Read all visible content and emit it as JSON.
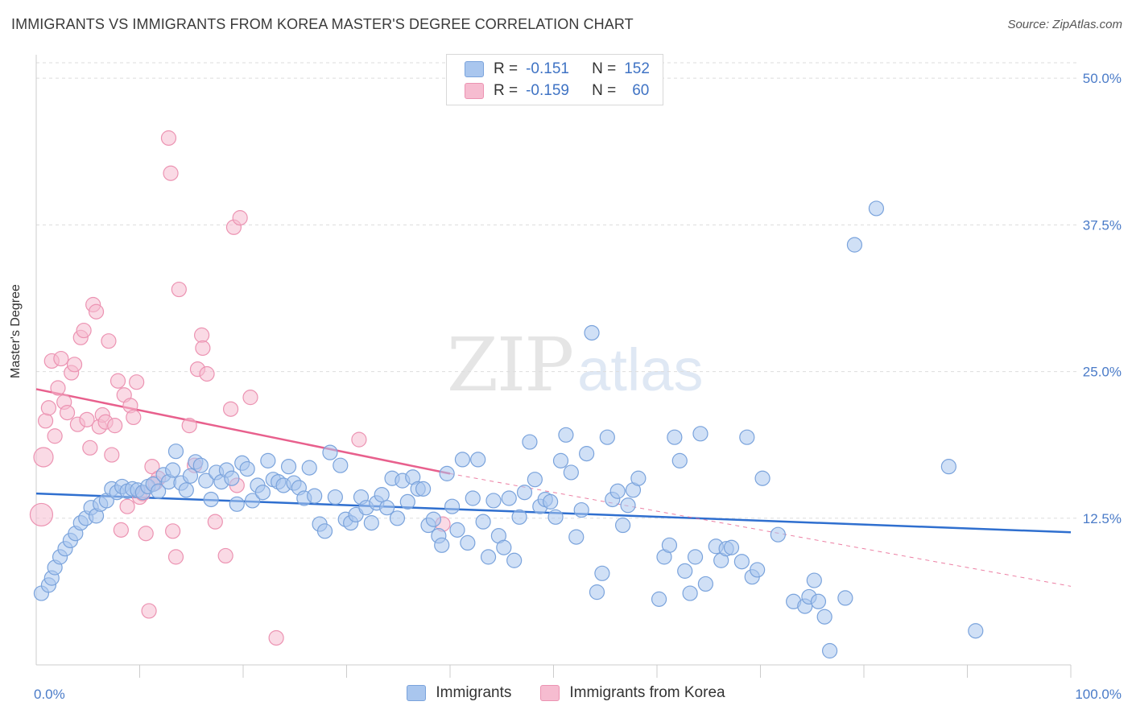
{
  "title": "IMMIGRANTS VS IMMIGRANTS FROM KOREA MASTER'S DEGREE CORRELATION CHART",
  "source": "Source: ZipAtlas.com",
  "watermark": {
    "zip": "ZIP",
    "atlas": "atlas"
  },
  "legend": {
    "row1": {
      "r_label": "R =",
      "r_value": "-0.151",
      "n_label": "N =",
      "n_value": "152"
    },
    "row2": {
      "r_label": "R =",
      "r_value": "-0.159",
      "n_label": "N =",
      "n_value": "60"
    }
  },
  "bottom_legend": {
    "series1": "Immigrants",
    "series2": "Immigrants from Korea"
  },
  "colors": {
    "blue_fill": "#a9c6ee",
    "blue_stroke": "#7aa3dc",
    "blue_line": "#2f6fcf",
    "pink_fill": "#f6bcd0",
    "pink_stroke": "#ec93b2",
    "pink_line": "#e8608d",
    "tick_text": "#4a7bc8",
    "grid": "#dddddd"
  },
  "chart_data": {
    "type": "scatter",
    "title": "IMMIGRANTS VS IMMIGRANTS FROM KOREA MASTER'S DEGREE CORRELATION CHART",
    "xlabel": "",
    "ylabel": "Master's Degree",
    "xlim": [
      0,
      100
    ],
    "ylim": [
      0,
      52
    ],
    "x_tick_labels": [
      "0.0%",
      "100.0%"
    ],
    "y_ticks": [
      12.5,
      25.0,
      37.5,
      50.0
    ],
    "y_tick_labels": [
      "12.5%",
      "25.0%",
      "37.5%",
      "50.0%"
    ],
    "grid": true,
    "legend_position": "top-center",
    "series": [
      {
        "name": "Immigrants",
        "r": -0.151,
        "n": 152,
        "trend": {
          "x": [
            0,
            100
          ],
          "y": [
            14.6,
            11.3
          ],
          "style": "solid"
        },
        "points": [
          [
            0.5,
            6.1
          ],
          [
            1.2,
            6.8
          ],
          [
            1.5,
            7.4
          ],
          [
            1.8,
            8.3
          ],
          [
            2.3,
            9.2
          ],
          [
            2.8,
            9.9
          ],
          [
            3.3,
            10.6
          ],
          [
            3.8,
            11.2
          ],
          [
            4.3,
            12.1
          ],
          [
            4.8,
            12.5
          ],
          [
            5.3,
            13.4
          ],
          [
            5.8,
            12.7
          ],
          [
            6.2,
            13.7
          ],
          [
            6.8,
            14.0
          ],
          [
            7.3,
            15.0
          ],
          [
            7.8,
            14.7
          ],
          [
            8.3,
            15.2
          ],
          [
            8.8,
            14.8
          ],
          [
            9.3,
            15.0
          ],
          [
            9.8,
            14.9
          ],
          [
            10.3,
            14.7
          ],
          [
            10.8,
            15.2
          ],
          [
            11.3,
            15.4
          ],
          [
            11.8,
            14.8
          ],
          [
            12.3,
            16.2
          ],
          [
            12.8,
            15.6
          ],
          [
            13.2,
            16.6
          ],
          [
            13.5,
            18.2
          ],
          [
            14.0,
            15.5
          ],
          [
            14.5,
            14.9
          ],
          [
            14.9,
            16.1
          ],
          [
            15.4,
            17.3
          ],
          [
            15.9,
            17.0
          ],
          [
            16.4,
            15.7
          ],
          [
            16.9,
            14.1
          ],
          [
            17.4,
            16.4
          ],
          [
            17.9,
            15.6
          ],
          [
            18.4,
            16.6
          ],
          [
            18.9,
            15.9
          ],
          [
            19.4,
            13.7
          ],
          [
            19.9,
            17.2
          ],
          [
            20.4,
            16.7
          ],
          [
            20.9,
            14.0
          ],
          [
            21.4,
            15.3
          ],
          [
            21.9,
            14.7
          ],
          [
            22.4,
            17.4
          ],
          [
            22.9,
            15.8
          ],
          [
            23.4,
            15.6
          ],
          [
            23.9,
            15.3
          ],
          [
            24.4,
            16.9
          ],
          [
            24.9,
            15.5
          ],
          [
            25.4,
            15.1
          ],
          [
            25.9,
            14.2
          ],
          [
            26.4,
            16.8
          ],
          [
            26.9,
            14.4
          ],
          [
            27.4,
            12.0
          ],
          [
            27.9,
            11.4
          ],
          [
            28.4,
            18.1
          ],
          [
            28.9,
            14.3
          ],
          [
            29.4,
            17.0
          ],
          [
            29.9,
            12.4
          ],
          [
            30.4,
            12.1
          ],
          [
            30.9,
            12.8
          ],
          [
            31.4,
            14.3
          ],
          [
            31.9,
            13.4
          ],
          [
            32.4,
            12.1
          ],
          [
            32.9,
            13.8
          ],
          [
            33.4,
            14.5
          ],
          [
            33.9,
            13.4
          ],
          [
            34.4,
            15.9
          ],
          [
            34.9,
            12.5
          ],
          [
            35.4,
            15.7
          ],
          [
            35.9,
            13.9
          ],
          [
            36.4,
            16.0
          ],
          [
            36.9,
            15.0
          ],
          [
            37.4,
            15.0
          ],
          [
            37.9,
            11.9
          ],
          [
            38.4,
            12.4
          ],
          [
            38.9,
            11.0
          ],
          [
            39.2,
            10.2
          ],
          [
            39.7,
            16.3
          ],
          [
            40.2,
            13.5
          ],
          [
            40.7,
            11.5
          ],
          [
            41.2,
            17.5
          ],
          [
            41.7,
            10.4
          ],
          [
            42.2,
            14.2
          ],
          [
            42.7,
            17.5
          ],
          [
            43.2,
            12.2
          ],
          [
            43.7,
            9.2
          ],
          [
            44.2,
            14.0
          ],
          [
            44.7,
            11.0
          ],
          [
            45.2,
            10.0
          ],
          [
            45.7,
            14.2
          ],
          [
            46.2,
            8.9
          ],
          [
            46.7,
            12.6
          ],
          [
            47.2,
            14.7
          ],
          [
            47.7,
            19.0
          ],
          [
            48.2,
            15.8
          ],
          [
            48.7,
            13.5
          ],
          [
            49.2,
            14.1
          ],
          [
            49.7,
            13.9
          ],
          [
            50.2,
            12.6
          ],
          [
            50.7,
            17.4
          ],
          [
            51.2,
            19.6
          ],
          [
            51.7,
            16.4
          ],
          [
            52.2,
            10.9
          ],
          [
            52.7,
            13.2
          ],
          [
            53.2,
            18.0
          ],
          [
            53.7,
            28.3
          ],
          [
            54.2,
            6.2
          ],
          [
            54.7,
            7.8
          ],
          [
            55.2,
            19.4
          ],
          [
            55.7,
            14.1
          ],
          [
            56.2,
            14.8
          ],
          [
            56.7,
            11.9
          ],
          [
            57.2,
            13.6
          ],
          [
            57.7,
            14.9
          ],
          [
            58.2,
            15.9
          ],
          [
            60.2,
            5.6
          ],
          [
            60.7,
            9.2
          ],
          [
            61.2,
            10.2
          ],
          [
            61.7,
            19.4
          ],
          [
            62.2,
            17.4
          ],
          [
            62.7,
            8.0
          ],
          [
            63.2,
            6.1
          ],
          [
            63.7,
            9.2
          ],
          [
            64.2,
            19.7
          ],
          [
            64.7,
            6.9
          ],
          [
            65.7,
            10.1
          ],
          [
            66.2,
            8.9
          ],
          [
            66.7,
            9.9
          ],
          [
            67.2,
            10.0
          ],
          [
            68.2,
            8.8
          ],
          [
            68.7,
            19.4
          ],
          [
            69.2,
            7.5
          ],
          [
            69.7,
            8.1
          ],
          [
            70.2,
            15.9
          ],
          [
            71.7,
            11.1
          ],
          [
            73.2,
            5.4
          ],
          [
            74.3,
            5.0
          ],
          [
            74.7,
            5.8
          ],
          [
            75.2,
            7.2
          ],
          [
            75.6,
            5.4
          ],
          [
            76.2,
            4.1
          ],
          [
            76.7,
            1.2
          ],
          [
            78.2,
            5.7
          ],
          [
            79.1,
            35.8
          ],
          [
            81.2,
            38.9
          ],
          [
            88.2,
            16.9
          ],
          [
            90.8,
            2.9
          ]
        ]
      },
      {
        "name": "Immigrants from Korea",
        "r": -0.159,
        "n": 60,
        "trend": {
          "x": [
            0,
            40
          ],
          "y": [
            23.5,
            16.3
          ],
          "style": "solid",
          "extension": {
            "x": [
              40,
              100
            ],
            "y": [
              16.3,
              6.7
            ],
            "style": "dashed"
          }
        },
        "points": [
          [
            0.5,
            12.8
          ],
          [
            0.7,
            17.7
          ],
          [
            0.9,
            20.8
          ],
          [
            1.2,
            21.9
          ],
          [
            1.5,
            25.9
          ],
          [
            1.8,
            19.5
          ],
          [
            2.1,
            23.6
          ],
          [
            2.4,
            26.1
          ],
          [
            2.7,
            22.4
          ],
          [
            3.0,
            21.5
          ],
          [
            3.4,
            24.9
          ],
          [
            3.7,
            25.6
          ],
          [
            4.0,
            20.5
          ],
          [
            4.3,
            27.9
          ],
          [
            4.6,
            28.5
          ],
          [
            4.9,
            20.9
          ],
          [
            5.2,
            18.5
          ],
          [
            5.5,
            30.7
          ],
          [
            5.8,
            30.1
          ],
          [
            6.1,
            20.3
          ],
          [
            6.4,
            21.3
          ],
          [
            6.7,
            20.7
          ],
          [
            7.0,
            27.6
          ],
          [
            7.3,
            17.9
          ],
          [
            7.6,
            20.4
          ],
          [
            7.9,
            24.2
          ],
          [
            8.2,
            11.5
          ],
          [
            8.5,
            23.0
          ],
          [
            8.8,
            13.5
          ],
          [
            9.1,
            22.1
          ],
          [
            9.4,
            21.1
          ],
          [
            9.7,
            24.1
          ],
          [
            10.0,
            14.3
          ],
          [
            10.3,
            14.6
          ],
          [
            10.6,
            11.2
          ],
          [
            10.9,
            4.6
          ],
          [
            11.2,
            16.9
          ],
          [
            11.5,
            15.5
          ],
          [
            11.8,
            15.9
          ],
          [
            12.8,
            44.9
          ],
          [
            13.0,
            41.9
          ],
          [
            13.2,
            11.4
          ],
          [
            13.5,
            9.2
          ],
          [
            13.8,
            32.0
          ],
          [
            14.8,
            20.4
          ],
          [
            15.3,
            17.0
          ],
          [
            15.6,
            25.2
          ],
          [
            16.0,
            28.1
          ],
          [
            16.1,
            27.0
          ],
          [
            16.5,
            24.8
          ],
          [
            17.3,
            12.2
          ],
          [
            18.3,
            9.3
          ],
          [
            18.8,
            21.8
          ],
          [
            19.1,
            37.3
          ],
          [
            19.4,
            15.3
          ],
          [
            19.7,
            38.1
          ],
          [
            20.7,
            22.8
          ],
          [
            23.2,
            2.3
          ],
          [
            31.2,
            19.2
          ],
          [
            39.3,
            12.0
          ]
        ]
      }
    ]
  }
}
